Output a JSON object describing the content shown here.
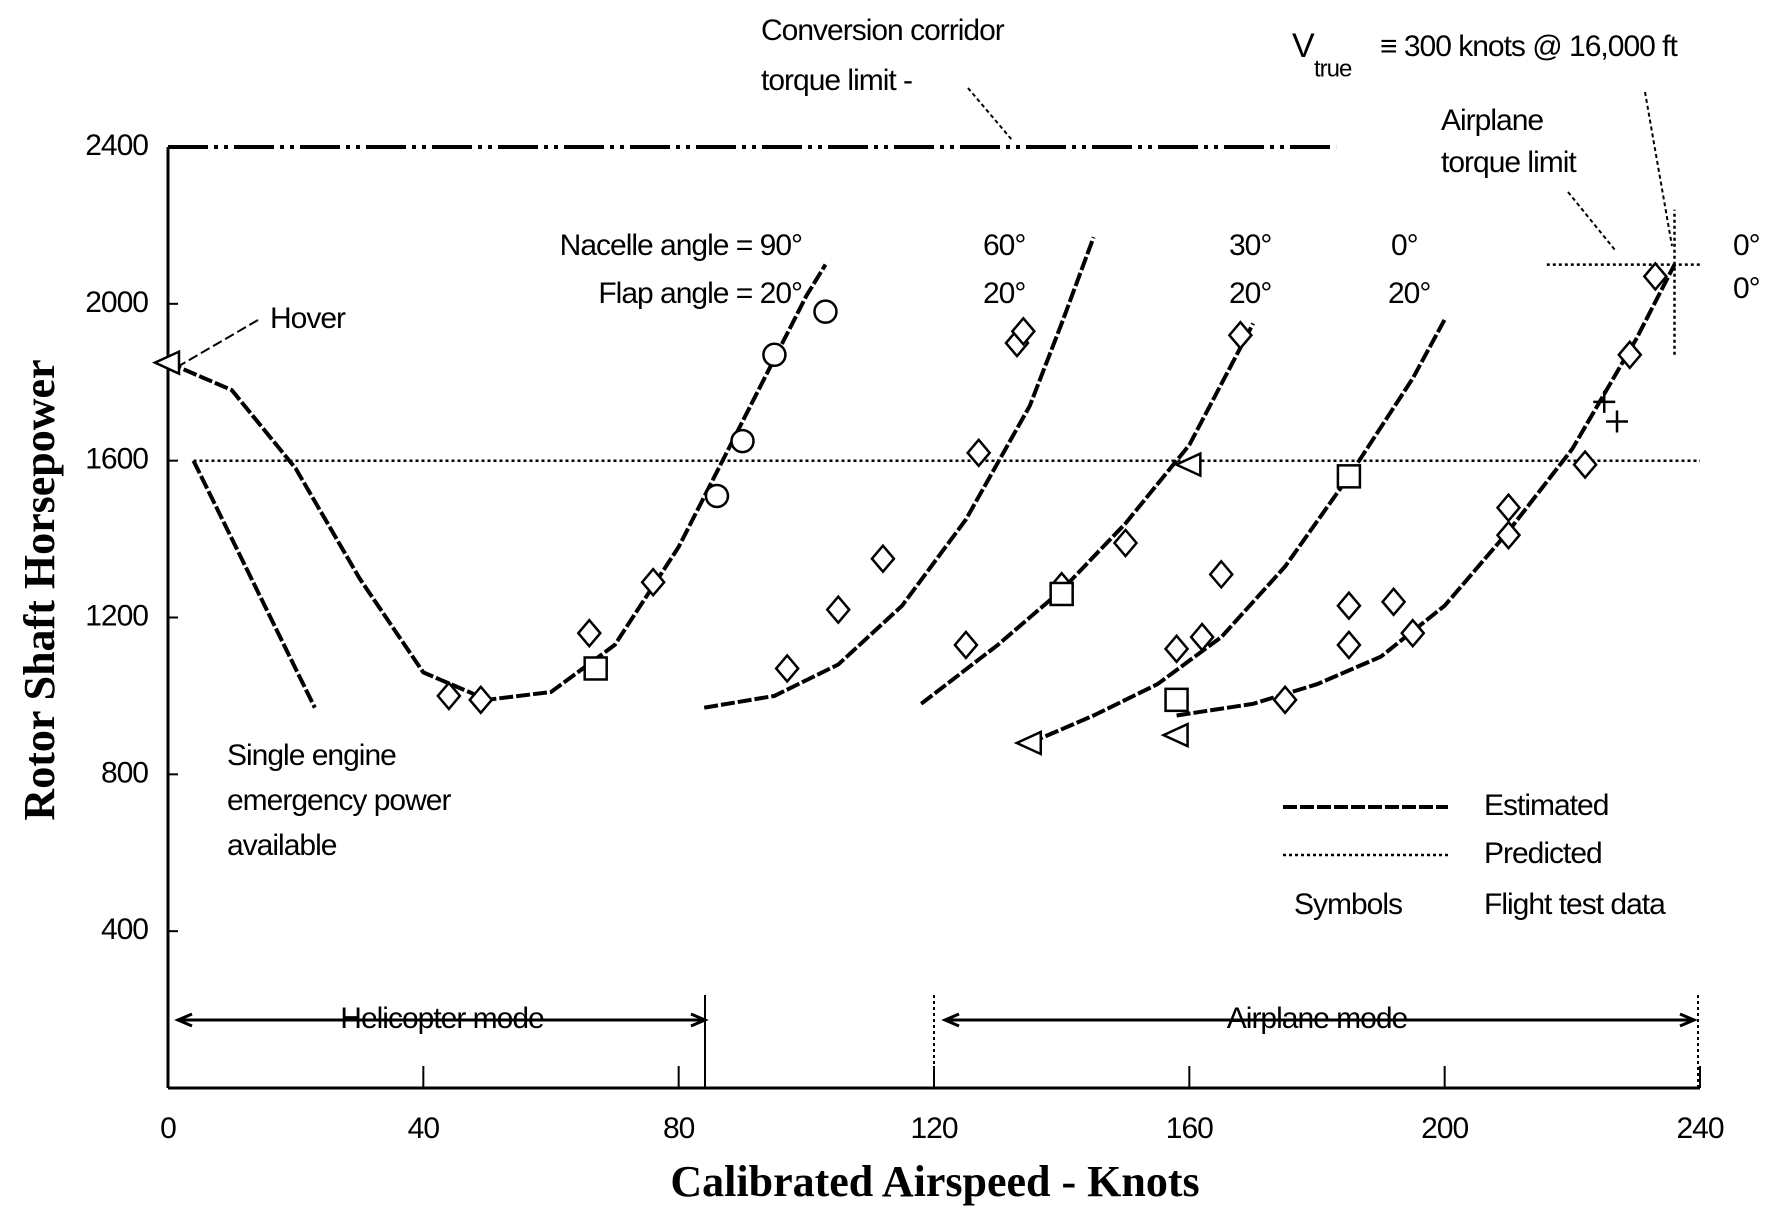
{
  "chart_data": {
    "type": "line",
    "y_label": "Rotor Shaft Horsepower",
    "x_label": "Calibrated Airspeed - Knots",
    "xlim": [
      0,
      240
    ],
    "ylim": [
      0,
      2400
    ],
    "xticks": [
      0,
      40,
      80,
      120,
      160,
      200,
      240
    ],
    "yticks": [
      400,
      800,
      1200,
      1600,
      2000,
      2400
    ],
    "color": "#000000",
    "lines": [
      {
        "style": "estimated",
        "x": [
          0,
          10,
          20,
          30,
          40,
          50,
          60,
          70,
          80,
          90,
          100,
          103
        ],
        "values": [
          1850,
          1780,
          1580,
          1300,
          1060,
          990,
          1010,
          1130,
          1380,
          1700,
          2020,
          2100
        ]
      },
      {
        "style": "estimated",
        "x": [
          84,
          95,
          105,
          115,
          125,
          135,
          140,
          145
        ],
        "values": [
          970,
          1000,
          1080,
          1230,
          1450,
          1740,
          1950,
          2170
        ]
      },
      {
        "style": "estimated",
        "x": [
          118,
          130,
          140,
          150,
          160,
          170
        ],
        "values": [
          980,
          1130,
          1270,
          1440,
          1640,
          1950
        ]
      },
      {
        "style": "estimated",
        "x": [
          135,
          145,
          155,
          165,
          175,
          185,
          195,
          200
        ],
        "values": [
          880,
          950,
          1030,
          1150,
          1330,
          1560,
          1810,
          1960
        ]
      },
      {
        "style": "estimated",
        "x": [
          158,
          170,
          180,
          190,
          200,
          210,
          220,
          230,
          236
        ],
        "values": [
          950,
          980,
          1030,
          1100,
          1230,
          1420,
          1630,
          1910,
          2100
        ]
      },
      {
        "style": "estimated",
        "x": [
          4,
          23
        ],
        "values": [
          1600,
          970
        ]
      },
      {
        "style": "dash-dot",
        "x": [
          0,
          183
        ],
        "values": [
          2400,
          2400
        ]
      },
      {
        "style": "predicted",
        "x": [
          4,
          240
        ],
        "values": [
          1600,
          1600
        ]
      },
      {
        "style": "predicted",
        "x": [
          216,
          240
        ],
        "values": [
          2100,
          2100
        ]
      },
      {
        "style": "predicted",
        "x": [
          236,
          236
        ],
        "values": [
          1870,
          2240
        ]
      }
    ],
    "flight_test_data": [
      {
        "marker": "circle",
        "x": [
          103,
          95,
          90,
          86
        ],
        "values": [
          1980,
          1870,
          1650,
          1510
        ]
      },
      {
        "marker": "diamond",
        "x": [
          76,
          66,
          44,
          49,
          133,
          134,
          127,
          112,
          105,
          97,
          168,
          150,
          140,
          125,
          165,
          162,
          158,
          233,
          229,
          222,
          210,
          210,
          192,
          195,
          185,
          185,
          175
        ],
        "values": [
          1290,
          1160,
          1000,
          990,
          1900,
          1930,
          1620,
          1350,
          1220,
          1070,
          1920,
          1390,
          1280,
          1130,
          1310,
          1150,
          1120,
          2070,
          1870,
          1590,
          1480,
          1410,
          1240,
          1160,
          1230,
          1130,
          990
        ]
      },
      {
        "marker": "square",
        "x": [
          67,
          140,
          185,
          158
        ],
        "values": [
          1070,
          1260,
          1560,
          990
        ]
      },
      {
        "marker": "triangle",
        "x": [
          0,
          160,
          135,
          158
        ],
        "values": [
          1850,
          1590,
          880,
          900
        ]
      },
      {
        "marker": "plus",
        "x": [
          225,
          227
        ],
        "values": [
          1750,
          1700
        ]
      }
    ],
    "annotations": [
      "Conversion corridor",
      "torque limit -",
      "V",
      "true",
      "≡ 300 knots @ 16,000 ft",
      "Airplane",
      "torque limit",
      "Nacelle angle = 90°",
      "Flap angle = 20°",
      "60°",
      "20°",
      "30°",
      "20°",
      "0°",
      "20°",
      "0°",
      "0°",
      "Hover",
      "Single engine",
      "emergency power",
      "available",
      "Helicopter mode",
      "Airplane mode"
    ],
    "legend": [
      {
        "label": "Estimated",
        "style": "estimated"
      },
      {
        "label": "Predicted",
        "style": "predicted"
      },
      {
        "key": "Symbols",
        "label": "Flight test data"
      }
    ]
  }
}
